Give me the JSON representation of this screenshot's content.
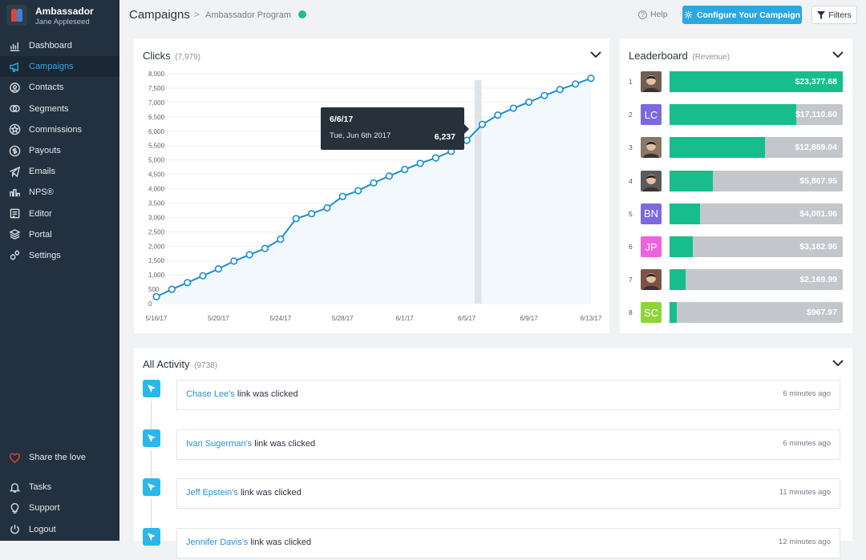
{
  "brand": {
    "title": "Ambassador",
    "user": "Jane Appleseed"
  },
  "nav": [
    {
      "label": "Dashboard",
      "icon": "dashboard-icon",
      "active": false
    },
    {
      "label": "Campaigns",
      "icon": "megaphone-icon",
      "active": true
    },
    {
      "label": "Contacts",
      "icon": "contacts-icon",
      "active": false
    },
    {
      "label": "Segments",
      "icon": "segments-icon",
      "active": false
    },
    {
      "label": "Commissions",
      "icon": "star-icon",
      "active": false
    },
    {
      "label": "Payouts",
      "icon": "dollar-icon",
      "active": false
    },
    {
      "label": "Emails",
      "icon": "paper-plane-icon",
      "active": false
    },
    {
      "label": "NPS®",
      "icon": "nps-icon",
      "active": false
    },
    {
      "label": "Editor",
      "icon": "editor-icon",
      "active": false
    },
    {
      "label": "Portal",
      "icon": "portal-icon",
      "active": false
    },
    {
      "label": "Settings",
      "icon": "settings-icon",
      "active": false
    }
  ],
  "nav_bottom": [
    {
      "label": "Share the love",
      "icon": "heart-icon"
    },
    {
      "label": "Tasks",
      "icon": "bell-icon"
    },
    {
      "label": "Support",
      "icon": "lightbulb-icon"
    },
    {
      "label": "Logout",
      "icon": "power-icon"
    }
  ],
  "header": {
    "title": "Campaigns",
    "separator": ">",
    "breadcrumb": "Ambassador Program",
    "status_color": "#1dbf8c",
    "help": "Help",
    "configure": "Configure Your Campaign",
    "filters": "Filters"
  },
  "clicks": {
    "title": "Clicks",
    "count": "(7,979)",
    "tooltip": {
      "date": "6/6/17",
      "day": "Tue, Jun 6th 2017",
      "value": "6,237"
    }
  },
  "chart_data": {
    "type": "line",
    "title": "Clicks",
    "ylim": [
      0,
      8000
    ],
    "yticks": [
      "0",
      "500",
      "1,000",
      "1,500",
      "2,000",
      "2,500",
      "3,000",
      "3,500",
      "4,000",
      "4,500",
      "5,000",
      "5,500",
      "6,000",
      "6,500",
      "7,000",
      "7,500",
      "8,000"
    ],
    "xticks": [
      "5/16/17",
      "5/20/17",
      "5/24/17",
      "5/28/17",
      "6/1/17",
      "6/5/17",
      "6/9/17",
      "6/13/17"
    ],
    "x": [
      "5/16/17",
      "5/17/17",
      "5/18/17",
      "5/19/17",
      "5/20/17",
      "5/21/17",
      "5/22/17",
      "5/23/17",
      "5/24/17",
      "5/25/17",
      "5/26/17",
      "5/27/17",
      "5/28/17",
      "5/29/17",
      "5/30/17",
      "5/31/17",
      "6/1/17",
      "6/2/17",
      "6/3/17",
      "6/4/17",
      "6/5/17",
      "6/6/17",
      "6/7/17",
      "6/8/17",
      "6/9/17",
      "6/10/17",
      "6/11/17",
      "6/12/17",
      "6/13/17"
    ],
    "series": [
      {
        "values": [
          240,
          500,
          730,
          970,
          1210,
          1480,
          1700,
          1920,
          2240,
          2960,
          3130,
          3330,
          3730,
          3930,
          4200,
          4440,
          4670,
          4880,
          5070,
          5300,
          5680,
          6237,
          6560,
          6800,
          7010,
          7240,
          7450,
          7640,
          7840
        ]
      }
    ],
    "highlight": "6/6/17",
    "color": "#1a8fd0",
    "grid": true
  },
  "leaderboard": {
    "title": "Leaderboard",
    "subtitle": "(Revenue)",
    "max": 23377.68,
    "rows": [
      {
        "rank": "1",
        "initials": "",
        "avatar_color": "#6f5e52",
        "value": 23377.68,
        "label": "$23,377.68"
      },
      {
        "rank": "2",
        "initials": "LC",
        "avatar_color": "#7c68e0",
        "value": 17110.6,
        "label": "$17,110.60"
      },
      {
        "rank": "3",
        "initials": "",
        "avatar_color": "#8a7766",
        "value": 12869.04,
        "label": "$12,869.04"
      },
      {
        "rank": "4",
        "initials": "",
        "avatar_color": "#5b5b5b",
        "value": 5867.95,
        "label": "$5,867.95"
      },
      {
        "rank": "5",
        "initials": "BN",
        "avatar_color": "#7c68e0",
        "value": 4081.96,
        "label": "$4,081.96"
      },
      {
        "rank": "6",
        "initials": "JP",
        "avatar_color": "#ef62df",
        "value": 3182.96,
        "label": "$3,182.96"
      },
      {
        "rank": "7",
        "initials": "",
        "avatar_color": "#7d5346",
        "value": 2169.99,
        "label": "$2,169.99"
      },
      {
        "rank": "8",
        "initials": "SC",
        "avatar_color": "#8fd43a",
        "value": 967.97,
        "label": "$967.97"
      }
    ]
  },
  "activity": {
    "title": "All Activity",
    "count": "(9738)",
    "items": [
      {
        "who": "Chase Lee's",
        "action": " link was clicked",
        "time": "6 minutes ago"
      },
      {
        "who": "Ivan Sugerman's",
        "action": " link was clicked",
        "time": "6 minutes ago"
      },
      {
        "who": "Jeff Epstein's",
        "action": " link was clicked",
        "time": "11 minutes ago"
      },
      {
        "who": "Jennifer Davis's",
        "action": " link was clicked",
        "time": "12 minutes ago"
      }
    ]
  }
}
